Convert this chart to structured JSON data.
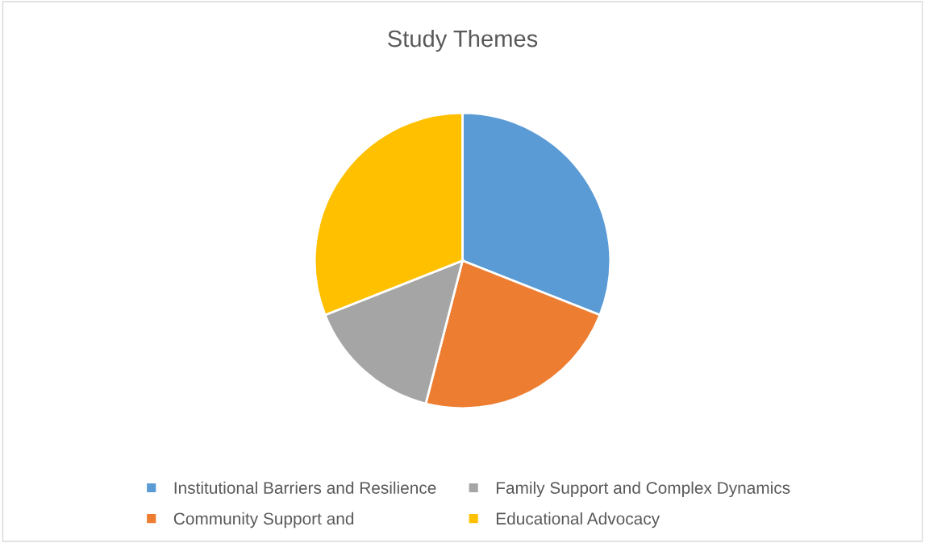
{
  "chart_data": {
    "type": "pie",
    "title": "Study Themes",
    "categories": [
      "Institutional Barriers and Resilience",
      "Community Support and",
      "Family Support and Complex Dynamics",
      "Educational Advocacy"
    ],
    "values": [
      31,
      23,
      15,
      31
    ],
    "colors": [
      "#5b9bd5",
      "#ed7d31",
      "#a5a5a5",
      "#ffc000"
    ],
    "legend": "bottom"
  }
}
